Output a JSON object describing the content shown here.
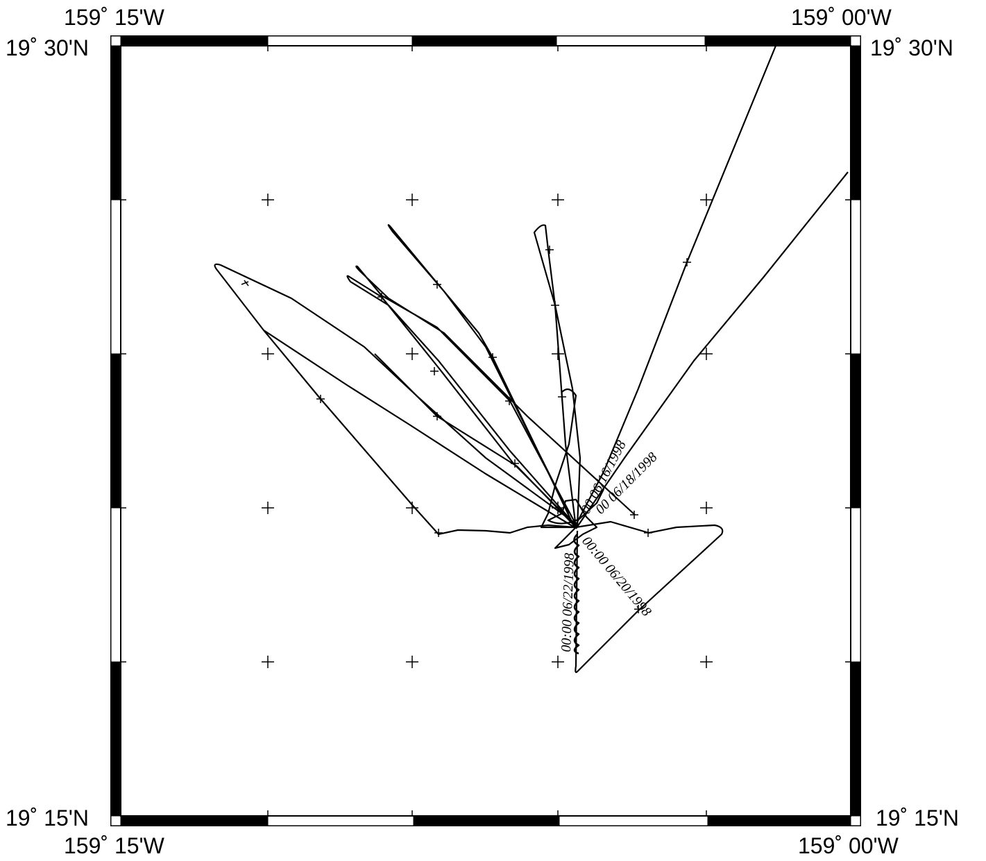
{
  "map": {
    "lon_labels": {
      "top_left": "159˚ 15'W",
      "top_right": "159˚ 00'W",
      "bottom_left": "159˚ 15'W",
      "bottom_right": "159˚ 00'W"
    },
    "lat_labels": {
      "top_left": "19˚ 30'N",
      "top_right": "19˚ 30'N",
      "bottom_left": "19˚ 15'N",
      "bottom_right": "19˚ 15'N"
    },
    "extent": {
      "west": "159˚ 15'W",
      "east": "159˚ 00'W",
      "south": "19˚ 15'N",
      "north": "19˚ 30'N"
    },
    "frame_style": "alternating black/white scale bar",
    "grid_marks": "plus-sign crosses",
    "track_color": "#000000",
    "track_labels": [
      "00 06/16/1998",
      "00 06/18/1998",
      "00:00 06/20/1998",
      "00:00 06/22/1998"
    ]
  }
}
